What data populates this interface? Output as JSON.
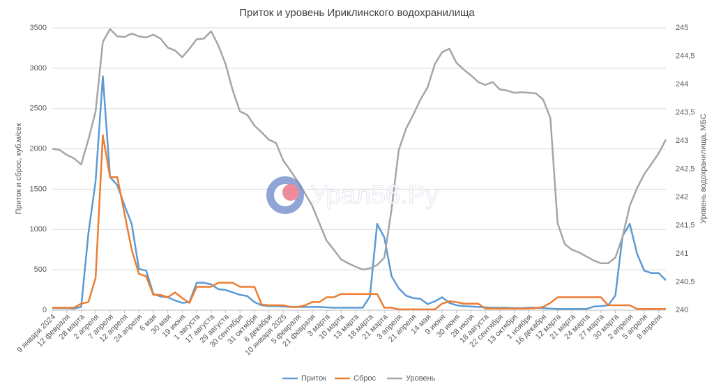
{
  "chart_data": {
    "type": "line",
    "title": "Приток и уровень Ириклинского водохранилища",
    "y_label": "Приток и сброс, куб.м/сек",
    "y2_label": "Уровень водохранилища, МБС",
    "watermark": "Урал56.Ру",
    "legend": "bottom",
    "categories": [
      "9 января 2024",
      null,
      "12 февраля",
      null,
      "28 марта",
      null,
      "2 апреля",
      null,
      "7 апреля",
      null,
      "12 апреля",
      null,
      "24 апреля",
      null,
      "6 мая",
      null,
      "30 мая",
      null,
      "19 июня",
      null,
      "1 августа",
      null,
      "17 августа",
      null,
      "29 августа",
      null,
      "30 сентября",
      null,
      "31 октября",
      null,
      "6 декабря",
      null,
      "10 января 2025",
      null,
      "5 февраля",
      null,
      "21 февраля",
      null,
      "3 марта",
      null,
      "10 марта",
      null,
      "13 марта",
      null,
      "18 марта",
      null,
      "21 марта",
      null,
      "3 апреля",
      null,
      "21 апреля",
      null,
      "14 мая",
      null,
      "9 июня",
      null,
      "30 июня",
      null,
      "28 июля",
      null,
      "18 августа",
      null,
      "22 сентября",
      null,
      "13 октября",
      null,
      "1 ноября",
      null,
      "16 декабря",
      null,
      "12 марта",
      null,
      "21 марта",
      null,
      "24 марта",
      null,
      "27 марта",
      null,
      "30 марта",
      null,
      "2 апреля",
      null,
      "5 апреля",
      null,
      "8 апреля",
      null
    ],
    "series": [
      {
        "name": "Приток",
        "color": "#5b9bd5",
        "values": [
          25,
          25,
          25,
          20,
          40,
          950,
          1600,
          2900,
          1650,
          1550,
          1300,
          1070,
          510,
          490,
          200,
          170,
          160,
          120,
          90,
          100,
          340,
          340,
          320,
          260,
          250,
          220,
          190,
          175,
          100,
          60,
          50,
          50,
          45,
          40,
          40,
          40,
          40,
          40,
          35,
          30,
          30,
          30,
          30,
          30,
          170,
          1070,
          900,
          420,
          270,
          180,
          150,
          140,
          75,
          110,
          160,
          90,
          60,
          50,
          45,
          40,
          35,
          30,
          30,
          30,
          25,
          25,
          30,
          30,
          25,
          20,
          15,
          15,
          15,
          15,
          15,
          45,
          50,
          60,
          180,
          920,
          1070,
          700,
          490,
          460,
          460,
          370
        ]
      },
      {
        "name": "Сброс",
        "color": "#ed7d31",
        "values": [
          30,
          30,
          30,
          30,
          80,
          100,
          400,
          2170,
          1650,
          1650,
          1200,
          750,
          450,
          420,
          190,
          190,
          160,
          220,
          150,
          90,
          290,
          290,
          290,
          340,
          340,
          340,
          290,
          290,
          290,
          70,
          60,
          60,
          60,
          40,
          40,
          60,
          100,
          100,
          160,
          160,
          200,
          200,
          200,
          200,
          200,
          200,
          30,
          30,
          10,
          10,
          10,
          10,
          10,
          10,
          80,
          110,
          100,
          80,
          80,
          80,
          20,
          20,
          20,
          20,
          20,
          20,
          20,
          25,
          40,
          90,
          160,
          160,
          160,
          160,
          160,
          160,
          160,
          60,
          60,
          60,
          60,
          15,
          15,
          15,
          15,
          15
        ]
      },
      {
        "name": "Уровень",
        "color": "#a5a5a5",
        "axis": "y2",
        "values": [
          242.86,
          242.84,
          242.75,
          242.69,
          242.58,
          243.02,
          243.52,
          244.75,
          244.98,
          244.85,
          244.84,
          244.9,
          244.85,
          244.83,
          244.88,
          244.81,
          244.65,
          244.6,
          244.48,
          244.63,
          244.8,
          244.81,
          244.94,
          244.69,
          244.36,
          243.89,
          243.52,
          243.46,
          243.27,
          243.15,
          243.02,
          242.96,
          242.65,
          242.47,
          242.28,
          242.07,
          241.85,
          241.54,
          241.23,
          241.07,
          240.9,
          240.83,
          240.77,
          240.72,
          240.74,
          240.8,
          240.93,
          241.79,
          242.84,
          243.21,
          243.46,
          243.73,
          243.95,
          244.36,
          244.57,
          244.63,
          244.38,
          244.26,
          244.16,
          244.04,
          243.99,
          244.04,
          243.91,
          243.89,
          243.85,
          243.86,
          243.85,
          243.84,
          243.73,
          243.4,
          241.54,
          241.17,
          241.07,
          241.02,
          240.95,
          240.88,
          240.83,
          240.83,
          240.93,
          241.3,
          241.85,
          242.16,
          242.41,
          242.59,
          242.78,
          243.02
        ]
      }
    ],
    "ylim": [
      0,
      3500
    ],
    "yticks": [
      0,
      500,
      1000,
      1500,
      2000,
      2500,
      3000,
      3500
    ],
    "y2lim": [
      240,
      245
    ],
    "y2ticks": [
      240,
      {
        "value": 240.5,
        "label": "240,5"
      },
      241,
      {
        "value": 241.5,
        "label": "241,5"
      },
      242,
      {
        "value": 242.5,
        "label": "242,5"
      },
      243,
      {
        "value": 243.5,
        "label": "243,5"
      },
      244,
      {
        "value": 244.5,
        "label": "244,5"
      },
      245
    ],
    "grid": true
  }
}
